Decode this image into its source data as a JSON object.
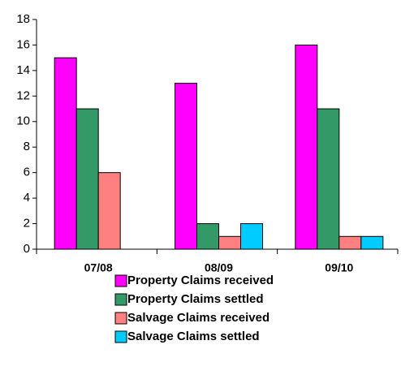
{
  "chart_data": {
    "type": "bar",
    "categories": [
      "07/08",
      "08/09",
      "09/10"
    ],
    "series": [
      {
        "name": "Property Claims received",
        "color": "#ff00ff",
        "values": [
          15,
          13,
          16
        ]
      },
      {
        "name": "Property Claims settled",
        "color": "#339966",
        "values": [
          11,
          2,
          11
        ]
      },
      {
        "name": "Salvage Claims received",
        "color": "#ff8080",
        "values": [
          6,
          1,
          1
        ]
      },
      {
        "name": "Salvage Claims settled",
        "color": "#00ccff",
        "values": [
          0,
          2,
          1
        ]
      }
    ],
    "ylim": [
      0,
      18
    ],
    "yticks": [
      0,
      2,
      4,
      6,
      8,
      10,
      12,
      14,
      16,
      18
    ],
    "grid": false,
    "legend": "bottom"
  }
}
